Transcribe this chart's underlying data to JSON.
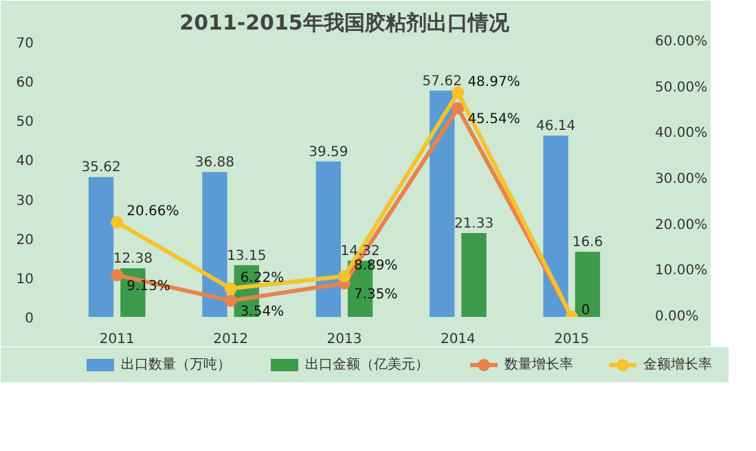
{
  "chart_data": {
    "type": "bar",
    "title": "2011-2015年我国胶粘剂出口情况",
    "categories": [
      "2011",
      "2012",
      "2013",
      "2014",
      "2015"
    ],
    "series": [
      {
        "name": "出口数量（万吨）",
        "color": "#5b9bd5",
        "values": [
          35.62,
          36.88,
          39.59,
          57.62,
          46.14
        ],
        "value_labels": [
          "35.62",
          "36.88",
          "39.59",
          "57.62",
          "46.14"
        ]
      },
      {
        "name": "出口金额（亿美元）",
        "color": "#3e9a4b",
        "values": [
          12.38,
          13.15,
          14.32,
          21.33,
          16.6
        ],
        "value_labels": [
          "12.38",
          "13.15",
          "14.32",
          "21.33",
          "16.6"
        ]
      },
      {
        "name": "数量增长率",
        "type": "line",
        "axis": "y2",
        "color": "#e8834a",
        "values": [
          9.13,
          3.54,
          7.35,
          45.54,
          0
        ],
        "value_labels": [
          "9.13%",
          "3.54%",
          "7.35%",
          "45.54%",
          null
        ]
      },
      {
        "name": "金额增长率",
        "type": "line",
        "axis": "y2",
        "color": "#f6c32a",
        "values": [
          20.66,
          6.22,
          8.89,
          48.97,
          0
        ],
        "value_labels": [
          "20.66%",
          "6.22%",
          "8.89%",
          "48.97%",
          "0"
        ]
      }
    ],
    "ylim": [
      0,
      70
    ],
    "yticks": [
      0,
      10,
      20,
      30,
      40,
      50,
      60,
      70
    ],
    "y2lim": [
      0,
      60
    ],
    "y2ticks": [
      {
        "value": 0,
        "label": "0.00%"
      },
      {
        "value": 10,
        "label": "10.00%"
      },
      {
        "value": 20,
        "label": "20.00%"
      },
      {
        "value": 30,
        "label": "30.00%"
      },
      {
        "value": 40,
        "label": "40.00%"
      },
      {
        "value": 50,
        "label": "50.00%"
      },
      {
        "value": 60,
        "label": "60.00%"
      }
    ],
    "grid": false,
    "legend": "bottom",
    "marker": "circle"
  }
}
